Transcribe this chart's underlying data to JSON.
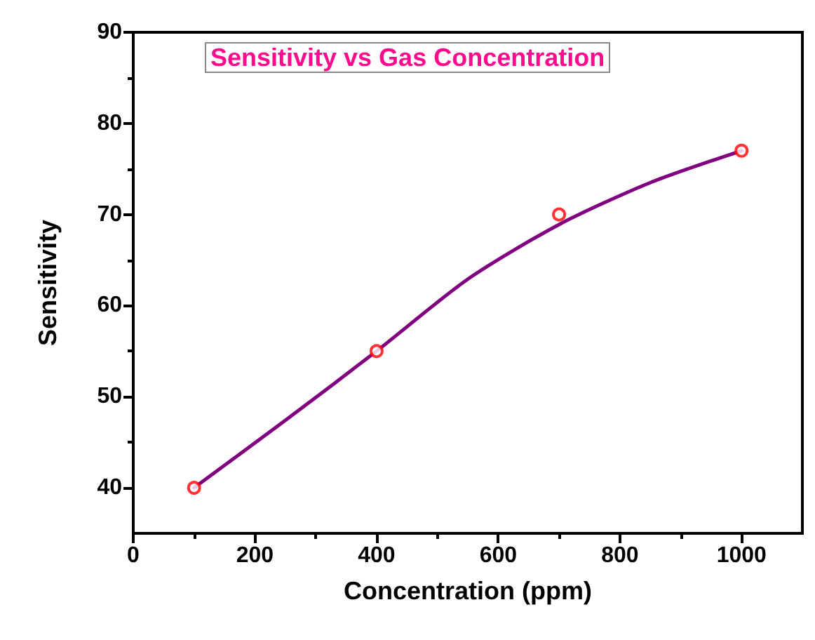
{
  "chart_data": {
    "type": "scatter",
    "title": "Sensitivity vs Gas Concentration",
    "xlabel": "Concentration (ppm)",
    "ylabel": "Sensitivity",
    "x": [
      100,
      400,
      700,
      1000
    ],
    "series": [
      {
        "color": "#ff0000",
        "marker": "circle",
        "values": [
          40,
          55,
          70,
          77
        ]
      },
      {
        "type": "line",
        "color": "#800080",
        "marker": "none",
        "x": [
          100,
          250,
          400,
          550,
          700,
          850,
          1000
        ],
        "values": [
          40,
          47.4,
          55,
          62.9,
          68.9,
          73.5,
          77
        ]
      }
    ],
    "xlim": [
      0,
      1100
    ],
    "xticks": [
      0,
      200,
      400,
      600,
      800,
      1000
    ],
    "ylim": [
      35,
      90
    ],
    "yticks": [
      40,
      50,
      60,
      70,
      80,
      90
    ],
    "grid": false
  }
}
